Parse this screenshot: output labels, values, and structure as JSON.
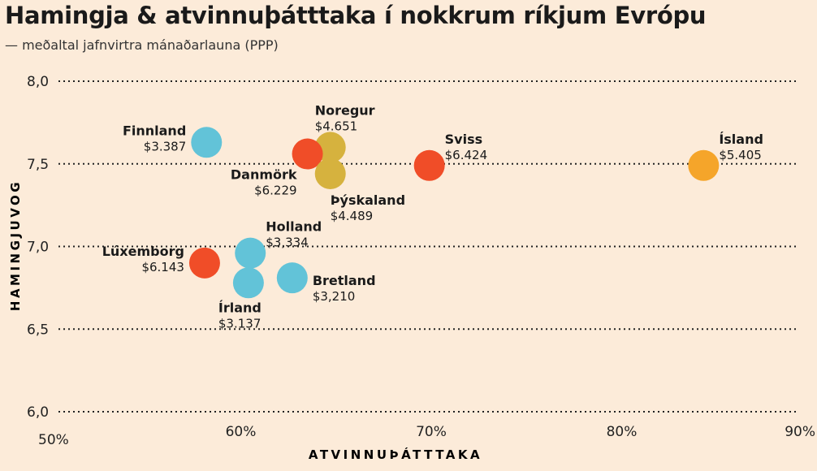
{
  "chart_data": {
    "type": "scatter",
    "title": "Hamingja & atvinnuþátttaka í nokkrum ríkjum Evrópu",
    "subtitle": "— meðaltal jafnvirtra mánaðarlauna (PPP)",
    "xlabel": "ATVINNUÞÁTTTAKA",
    "ylabel": "HAMINGJUVOG",
    "xlim": [
      50,
      90
    ],
    "ylim": [
      6.0,
      8.0
    ],
    "x_ticks": [
      50,
      60,
      70,
      80,
      90
    ],
    "x_tick_labels": [
      "50%",
      "60%",
      "70%",
      "80%",
      "90%"
    ],
    "y_ticks": [
      6.0,
      6.5,
      7.0,
      7.5,
      8.0
    ],
    "y_tick_labels": [
      "6,0",
      "6,5",
      "7,0",
      "7,5",
      "8,0"
    ],
    "grid": "horizontal dotted",
    "colors": {
      "low": "#62c3d8",
      "mid": "#d6b23e",
      "high": "#f04d28",
      "highlight": "#f5a52a"
    },
    "points": [
      {
        "country": "Finnland",
        "wage": "$3.387",
        "x": 58.2,
        "y": 7.63,
        "group": "low",
        "label_pos": "left"
      },
      {
        "country": "Noregur",
        "wage": "$4.651",
        "x": 64.7,
        "y": 7.6,
        "group": "mid",
        "label_pos": "above"
      },
      {
        "country": "Danmörk",
        "wage": "$6.229",
        "x": 63.5,
        "y": 7.56,
        "group": "high",
        "label_pos": "below-left"
      },
      {
        "country": "Þýskaland",
        "wage": "$4.489",
        "x": 64.7,
        "y": 7.44,
        "group": "mid",
        "label_pos": "below-right"
      },
      {
        "country": "Sviss",
        "wage": "$6.424",
        "x": 69.9,
        "y": 7.49,
        "group": "high",
        "label_pos": "above-right"
      },
      {
        "country": "Ísland",
        "wage": "$5.405",
        "x": 84.3,
        "y": 7.49,
        "group": "highlight",
        "label_pos": "above-right"
      },
      {
        "country": "Holland",
        "wage": "$3,334",
        "x": 60.5,
        "y": 6.96,
        "group": "low",
        "label_pos": "above-right"
      },
      {
        "country": "Lúxemborg",
        "wage": "$6.143",
        "x": 58.1,
        "y": 6.9,
        "group": "high",
        "label_pos": "left"
      },
      {
        "country": "Bretland",
        "wage": "$3,210",
        "x": 62.7,
        "y": 6.81,
        "group": "low",
        "label_pos": "right"
      },
      {
        "country": "Írland",
        "wage": "$3.137",
        "x": 60.4,
        "y": 6.78,
        "group": "low",
        "label_pos": "below"
      }
    ]
  }
}
